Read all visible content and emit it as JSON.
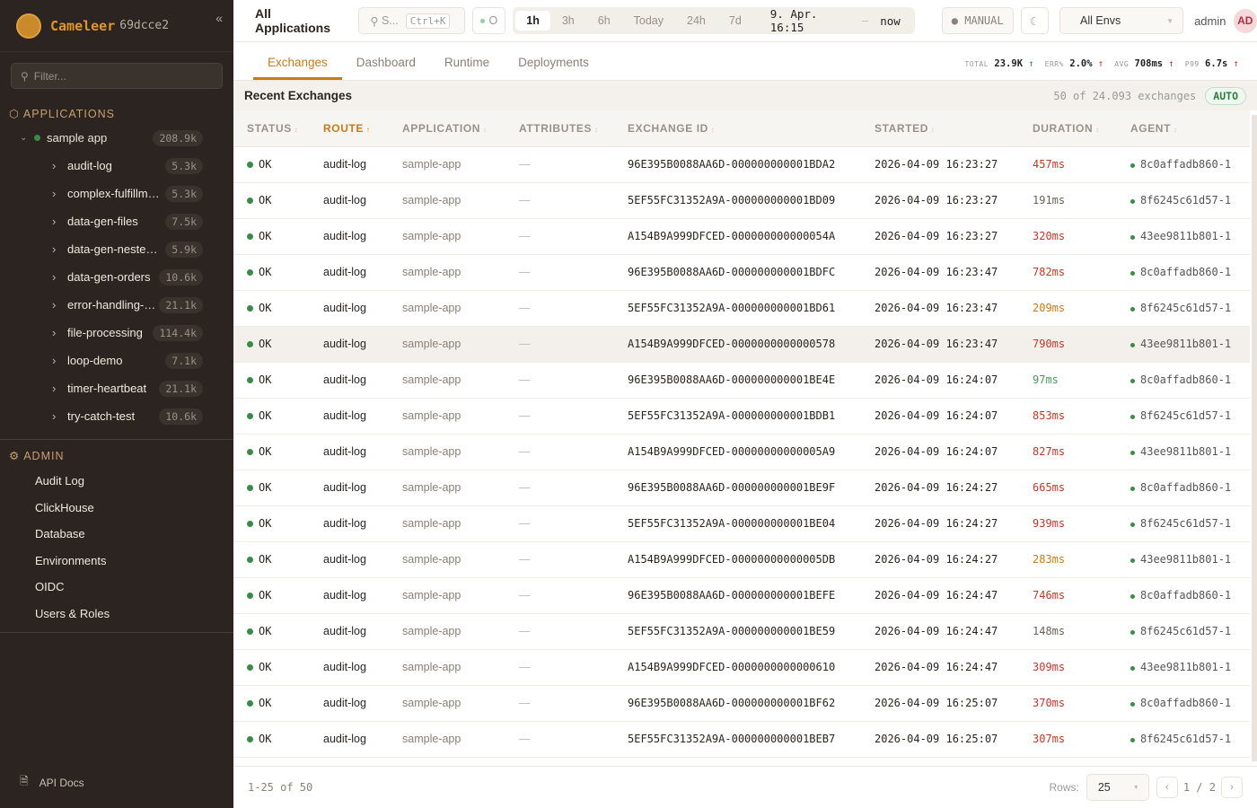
{
  "brand": {
    "name": "Cameleer",
    "version": "69dcce2"
  },
  "sidebar": {
    "filter_placeholder": "Filter...",
    "applications_heading": "APPLICATIONS",
    "app": {
      "name": "sample app",
      "count": "208.9k",
      "status_color": "#3c8a4a"
    },
    "routes": [
      {
        "name": "audit-log",
        "count": "5.3k"
      },
      {
        "name": "complex-fulfillm…",
        "count": "5.3k"
      },
      {
        "name": "data-gen-files",
        "count": "7.5k"
      },
      {
        "name": "data-gen-neste…",
        "count": "5.9k"
      },
      {
        "name": "data-gen-orders",
        "count": "10.6k"
      },
      {
        "name": "error-handling-…",
        "count": "21.1k"
      },
      {
        "name": "file-processing",
        "count": "114.4k"
      },
      {
        "name": "loop-demo",
        "count": "7.1k"
      },
      {
        "name": "timer-heartbeat",
        "count": "21.1k"
      },
      {
        "name": "try-catch-test",
        "count": "10.6k"
      }
    ],
    "admin_heading": "ADMIN",
    "admin_items": [
      "Audit Log",
      "ClickHouse",
      "Database",
      "Environments",
      "OIDC",
      "Users & Roles"
    ],
    "api_docs": "API Docs"
  },
  "topbar": {
    "title": "All Applications",
    "search_placeholder": "S...",
    "search_shortcut": "Ctrl+K",
    "status_short": "O",
    "time_ranges": [
      "1h",
      "3h",
      "6h",
      "Today",
      "24h",
      "7d"
    ],
    "active_range": "1h",
    "range_from": "9. Apr. 16:15",
    "range_sep": "–",
    "range_to": "now",
    "refresh_mode": "MANUAL",
    "env": "All Envs",
    "user": "admin",
    "avatar": "AD"
  },
  "tabs": [
    "Exchanges",
    "Dashboard",
    "Runtime",
    "Deployments"
  ],
  "active_tab": "Exchanges",
  "kpis": [
    {
      "label": "TOTAL",
      "value": "23.9K",
      "trend": "up",
      "color": "#3c8a4a"
    },
    {
      "label": "ERR%",
      "value": "2.0%",
      "trend": "up",
      "color": "#c0392b"
    },
    {
      "label": "AVG",
      "value": "708ms",
      "trend": "up",
      "color": "#c0392b"
    },
    {
      "label": "P99",
      "value": "6.7s",
      "trend": "up",
      "color": "#c0392b"
    }
  ],
  "recent": {
    "title": "Recent Exchanges",
    "count_text": "50 of 24.093 exchanges",
    "auto_label": "AUTO"
  },
  "table": {
    "columns": [
      "STATUS",
      "ROUTE",
      "APPLICATION",
      "ATTRIBUTES",
      "EXCHANGE ID",
      "STARTED",
      "DURATION",
      "AGENT"
    ],
    "sorted_column": "ROUTE",
    "rows": [
      [
        "OK",
        "audit-log",
        "sample-app",
        "—",
        "96E395B0088AA6D-000000000001BDA2",
        "2026-04-09 16:23:27",
        "457ms",
        "8c0affadb860-1"
      ],
      [
        "OK",
        "audit-log",
        "sample-app",
        "—",
        "5EF55FC31352A9A-000000000001BD09",
        "2026-04-09 16:23:27",
        "191ms",
        "8f6245c61d57-1"
      ],
      [
        "OK",
        "audit-log",
        "sample-app",
        "—",
        "A154B9A999DFCED-000000000000054A",
        "2026-04-09 16:23:27",
        "320ms",
        "43ee9811b801-1"
      ],
      [
        "OK",
        "audit-log",
        "sample-app",
        "—",
        "96E395B0088AA6D-000000000001BDFC",
        "2026-04-09 16:23:47",
        "782ms",
        "8c0affadb860-1"
      ],
      [
        "OK",
        "audit-log",
        "sample-app",
        "—",
        "5EF55FC31352A9A-000000000001BD61",
        "2026-04-09 16:23:47",
        "209ms",
        "8f6245c61d57-1"
      ],
      [
        "OK",
        "audit-log",
        "sample-app",
        "—",
        "A154B9A999DFCED-0000000000000578",
        "2026-04-09 16:23:47",
        "790ms",
        "43ee9811b801-1"
      ],
      [
        "OK",
        "audit-log",
        "sample-app",
        "—",
        "96E395B0088AA6D-000000000001BE4E",
        "2026-04-09 16:24:07",
        "97ms",
        "8c0affadb860-1"
      ],
      [
        "OK",
        "audit-log",
        "sample-app",
        "—",
        "5EF55FC31352A9A-000000000001BDB1",
        "2026-04-09 16:24:07",
        "853ms",
        "8f6245c61d57-1"
      ],
      [
        "OK",
        "audit-log",
        "sample-app",
        "—",
        "A154B9A999DFCED-00000000000005A9",
        "2026-04-09 16:24:07",
        "827ms",
        "43ee9811b801-1"
      ],
      [
        "OK",
        "audit-log",
        "sample-app",
        "—",
        "96E395B0088AA6D-000000000001BE9F",
        "2026-04-09 16:24:27",
        "665ms",
        "8c0affadb860-1"
      ],
      [
        "OK",
        "audit-log",
        "sample-app",
        "—",
        "5EF55FC31352A9A-000000000001BE04",
        "2026-04-09 16:24:27",
        "939ms",
        "8f6245c61d57-1"
      ],
      [
        "OK",
        "audit-log",
        "sample-app",
        "—",
        "A154B9A999DFCED-00000000000005DB",
        "2026-04-09 16:24:27",
        "283ms",
        "43ee9811b801-1"
      ],
      [
        "OK",
        "audit-log",
        "sample-app",
        "—",
        "96E395B0088AA6D-000000000001BEFE",
        "2026-04-09 16:24:47",
        "746ms",
        "8c0affadb860-1"
      ],
      [
        "OK",
        "audit-log",
        "sample-app",
        "—",
        "5EF55FC31352A9A-000000000001BE59",
        "2026-04-09 16:24:47",
        "148ms",
        "8f6245c61d57-1"
      ],
      [
        "OK",
        "audit-log",
        "sample-app",
        "—",
        "A154B9A999DFCED-0000000000000610",
        "2026-04-09 16:24:47",
        "309ms",
        "43ee9811b801-1"
      ],
      [
        "OK",
        "audit-log",
        "sample-app",
        "—",
        "96E395B0088AA6D-000000000001BF62",
        "2026-04-09 16:25:07",
        "370ms",
        "8c0affadb860-1"
      ],
      [
        "OK",
        "audit-log",
        "sample-app",
        "—",
        "5EF55FC31352A9A-000000000001BEB7",
        "2026-04-09 16:25:07",
        "307ms",
        "8f6245c61d57-1"
      ]
    ],
    "highlighted_row": 5
  },
  "footer": {
    "range": "1-25 of 50",
    "rows_label": "Rows:",
    "rows_value": "25",
    "page": "1",
    "pages": "2",
    "page_sep": "/"
  },
  "colors": {
    "accent": "#c87a1a",
    "ok": "#3c8a4a",
    "slow": "#c0392b",
    "medium": "#c87a1a",
    "fast": "#4a9a5a",
    "sidebar_bg": "#2b2420"
  }
}
